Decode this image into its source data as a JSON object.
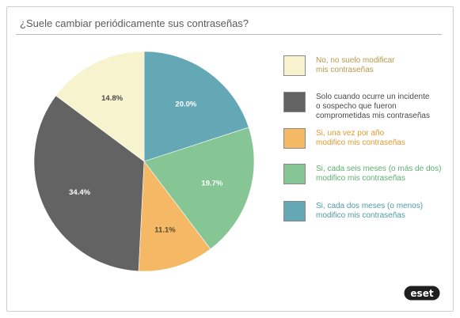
{
  "title": "¿Suele cambiar periódicamente sus contraseñas?",
  "logo_text": "eset",
  "chart_data": {
    "type": "pie",
    "title": "¿Suele cambiar periódicamente sus contraseñas?",
    "slices": [
      {
        "label": "Si, cada dos meses (o  menos)\nmodifico mis contraseñas",
        "value": 20.0,
        "display": "20.0%",
        "color": "#63a8b4",
        "text_color": "#4f9aa7",
        "value_label_color": "#ffffff"
      },
      {
        "label": "Si, cada seis meses (o más de dos)\nmodifico mis contraseñas",
        "value": 19.7,
        "display": "19.7%",
        "color": "#86c594",
        "text_color": "#5fae6f",
        "value_label_color": "#ffffff"
      },
      {
        "label": "Si, una vez por año\nmodifico mis contraseñas",
        "value": 11.1,
        "display": "11.1%",
        "color": "#f5b966",
        "text_color": "#e39a30",
        "value_label_color": "#5a4a30"
      },
      {
        "label": "Solo cuando ocurre un incidente\no sospecho que fueron\ncomprometidas mis contraseñas",
        "value": 34.4,
        "display": "34.4%",
        "color": "#636363",
        "text_color": "#4a4a4a",
        "value_label_color": "#ffffff"
      },
      {
        "label": "No, no suelo modificar\nmis contraseñas",
        "value": 14.8,
        "display": "14.8%",
        "color": "#f7f3cf",
        "text_color": "#b59a48",
        "value_label_color": "#4a4a4a"
      }
    ],
    "legend_order": [
      4,
      3,
      2,
      1,
      0
    ],
    "start_angle_deg": 0,
    "direction": "clockwise",
    "legend_position": "right"
  }
}
